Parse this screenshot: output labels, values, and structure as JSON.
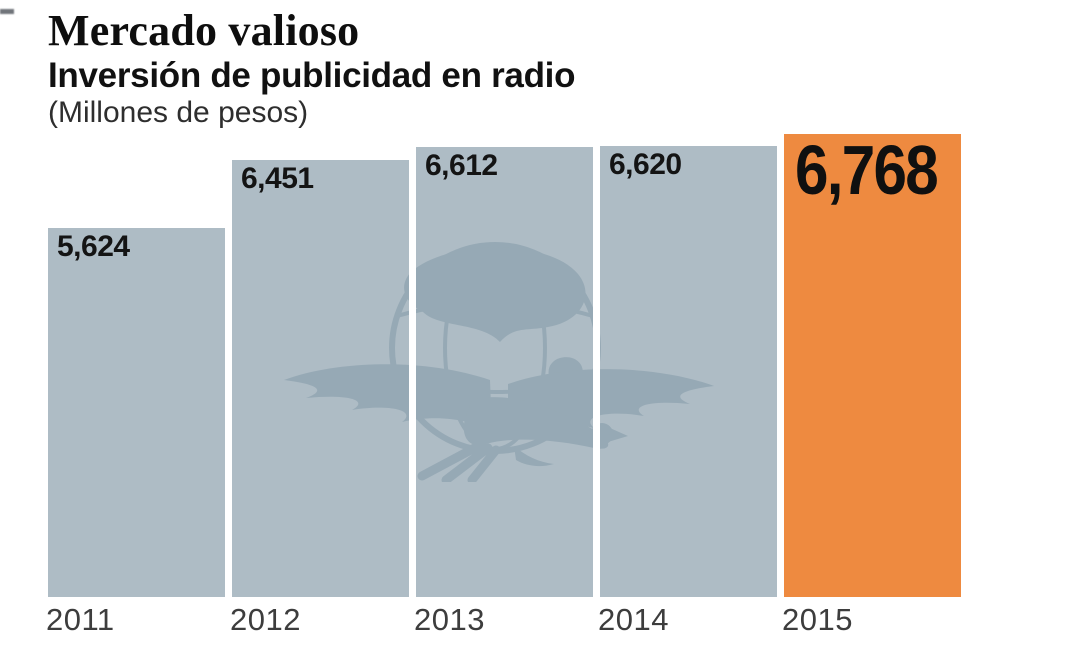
{
  "header": {
    "title": "Mercado valioso",
    "subtitle": "Inversión de publicidad en radio",
    "units_note": "(Millones de pesos)"
  },
  "chart_data": {
    "type": "bar",
    "title": "Mercado valioso",
    "subtitle": "Inversión de publicidad en radio",
    "units": "Millones de pesos",
    "categories": [
      "2011",
      "2012",
      "2013",
      "2014",
      "2015"
    ],
    "values": [
      5624,
      6451,
      6612,
      6620,
      6768
    ],
    "value_labels": [
      "5,624",
      "6,451",
      "6,612",
      "6,620",
      "6,768"
    ],
    "highlight_index": 4,
    "highlight_category": "2015",
    "xlabel": "",
    "ylabel": "",
    "axis": "none",
    "grid": false,
    "legend": "none",
    "bars_not_zero_based": true,
    "colors": {
      "bar": "#aebcc5",
      "highlight": "#ee8a40",
      "value_label": "#141414",
      "year_label": "#3d3d3d",
      "watermark": "#46697e",
      "background": "#ffffff"
    },
    "watermark": "el-universal-eagle-globe-logo"
  }
}
